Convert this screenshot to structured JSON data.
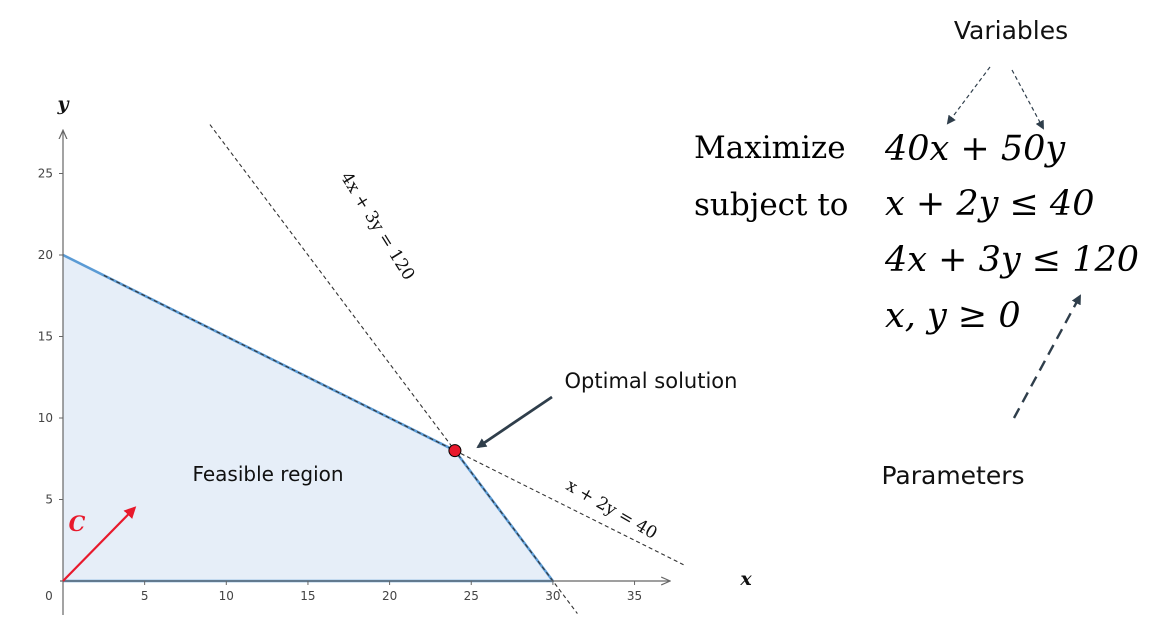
{
  "graph": {
    "x_axis_label": "x",
    "y_axis_label": "y",
    "x_range": [
      0,
      37
    ],
    "y_range": [
      0,
      26
    ],
    "x_ticks": [
      0,
      5,
      10,
      15,
      20,
      25,
      30,
      35
    ],
    "y_ticks": [
      5,
      10,
      15,
      20,
      25
    ],
    "feasible_region_label": "Feasible region",
    "feasible_region_vertices": [
      [
        0,
        0
      ],
      [
        0,
        20
      ],
      [
        24,
        8
      ],
      [
        30,
        0
      ]
    ],
    "constraint_line_1": {
      "label": "4x + 3y = 120",
      "from": [
        9,
        28
      ],
      "to": [
        31.5,
        -2
      ]
    },
    "constraint_line_2": {
      "label": "x + 2y = 40",
      "from": [
        2.5,
        18.75
      ],
      "to": [
        38,
        1
      ]
    },
    "optimal_point": [
      24,
      8
    ],
    "optimal_label": "Optimal solution",
    "objective_vector_label": "C",
    "objective_vector": {
      "from": [
        0,
        0
      ],
      "to": [
        4.4,
        4.5
      ]
    },
    "colors": {
      "region_fill": "#e6eef8",
      "region_edge": "#5b9bd5",
      "optimal_point": "#e8192c",
      "vector": "#e8192c",
      "axis": "#666666",
      "annotation_arrow": "#2f3e4b"
    }
  },
  "model": {
    "variables_label": "Variables",
    "parameters_label": "Parameters",
    "maximize_word": "Maximize",
    "subject_to_word": "subject to",
    "objective": "40x + 50y",
    "constraints": [
      "x + 2y ≤ 40",
      "4x + 3y ≤ 120",
      "x, y ≥ 0"
    ]
  }
}
